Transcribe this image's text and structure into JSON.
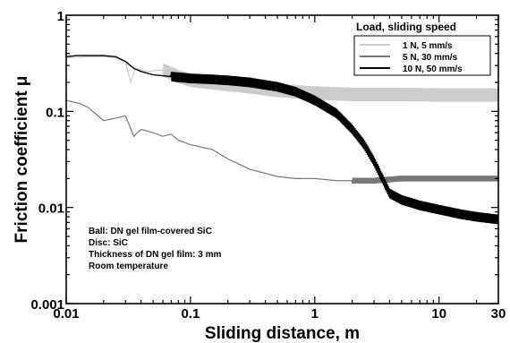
{
  "chart_data": {
    "type": "line",
    "xscale": "log",
    "yscale": "log",
    "xlim": [
      0.01,
      30
    ],
    "ylim": [
      0.001,
      1
    ],
    "xlabel": "Sliding distance, m",
    "ylabel": "Friction coefficient  μ",
    "xticks": [
      {
        "value": 0.01,
        "label": "0.01"
      },
      {
        "value": 0.1,
        "label": "0.1"
      },
      {
        "value": 1,
        "label": "1"
      },
      {
        "value": 10,
        "label": "10"
      },
      {
        "value": 30,
        "label": "30"
      }
    ],
    "yticks": [
      {
        "value": 0.001,
        "label": "0.001"
      },
      {
        "value": 0.01,
        "label": "0.01"
      },
      {
        "value": 0.1,
        "label": "0.1"
      },
      {
        "value": 1,
        "label": "1"
      }
    ],
    "legend": {
      "title": "Load, sliding speed",
      "position": "top-right"
    },
    "series": [
      {
        "name": "1 N, 5 mm/s",
        "color": "#cccccc",
        "line_width": 1.2,
        "points": [
          [
            0.01,
            0.36
          ],
          [
            0.015,
            0.37
          ],
          [
            0.02,
            0.37
          ],
          [
            0.025,
            0.36
          ],
          [
            0.03,
            0.33
          ],
          [
            0.033,
            0.2
          ],
          [
            0.036,
            0.28
          ],
          [
            0.045,
            0.26
          ],
          [
            0.06,
            0.27
          ],
          [
            0.08,
            0.23
          ],
          [
            0.1,
            0.21
          ],
          [
            0.2,
            0.19
          ],
          [
            0.3,
            0.18
          ],
          [
            0.5,
            0.165
          ],
          [
            0.7,
            0.16
          ],
          [
            1,
            0.155
          ],
          [
            2,
            0.15
          ],
          [
            5,
            0.15
          ],
          [
            10,
            0.148
          ],
          [
            20,
            0.148
          ],
          [
            30,
            0.148
          ]
        ],
        "oscillation": {
          "from_x": 0.06,
          "to_x": 30,
          "amplitude_decades": 0.07
        }
      },
      {
        "name": "5 N, 30 mm/s",
        "color": "#777777",
        "line_width": 1.2,
        "points": [
          [
            0.01,
            0.13
          ],
          [
            0.013,
            0.12
          ],
          [
            0.015,
            0.11
          ],
          [
            0.018,
            0.09
          ],
          [
            0.02,
            0.08
          ],
          [
            0.025,
            0.085
          ],
          [
            0.03,
            0.09
          ],
          [
            0.035,
            0.055
          ],
          [
            0.04,
            0.065
          ],
          [
            0.05,
            0.06
          ],
          [
            0.06,
            0.055
          ],
          [
            0.07,
            0.058
          ],
          [
            0.08,
            0.05
          ],
          [
            0.1,
            0.045
          ],
          [
            0.15,
            0.04
          ],
          [
            0.2,
            0.032
          ],
          [
            0.3,
            0.025
          ],
          [
            0.5,
            0.021
          ],
          [
            0.7,
            0.02
          ],
          [
            1,
            0.02
          ],
          [
            1.5,
            0.019
          ],
          [
            2,
            0.019
          ],
          [
            3,
            0.019
          ],
          [
            5,
            0.02
          ],
          [
            10,
            0.02
          ],
          [
            20,
            0.02
          ],
          [
            30,
            0.02
          ]
        ],
        "oscillation": {
          "from_x": 2,
          "to_x": 30,
          "amplitude_decades": 0.03
        }
      },
      {
        "name": "10 N, 50 mm/s",
        "color": "#000000",
        "line_width": 1.4,
        "points": [
          [
            0.01,
            0.37
          ],
          [
            0.012,
            0.38
          ],
          [
            0.015,
            0.38
          ],
          [
            0.02,
            0.38
          ],
          [
            0.025,
            0.37
          ],
          [
            0.03,
            0.33
          ],
          [
            0.035,
            0.28
          ],
          [
            0.04,
            0.26
          ],
          [
            0.05,
            0.24
          ],
          [
            0.07,
            0.23
          ],
          [
            0.1,
            0.22
          ],
          [
            0.15,
            0.215
          ],
          [
            0.2,
            0.21
          ],
          [
            0.3,
            0.2
          ],
          [
            0.5,
            0.18
          ],
          [
            0.7,
            0.16
          ],
          [
            1,
            0.13
          ],
          [
            1.5,
            0.095
          ],
          [
            2,
            0.065
          ],
          [
            2.5,
            0.045
          ],
          [
            3,
            0.03
          ],
          [
            3.5,
            0.02
          ],
          [
            4,
            0.014
          ],
          [
            5,
            0.012
          ],
          [
            7,
            0.0105
          ],
          [
            10,
            0.0095
          ],
          [
            15,
            0.0085
          ],
          [
            20,
            0.008
          ],
          [
            30,
            0.0075
          ]
        ],
        "oscillation": {
          "from_x": 0.07,
          "to_x": 30,
          "amplitude_decades": 0.05
        }
      }
    ],
    "annotation": [
      "Ball: DN gel film-covered SiC",
      "Disc: SiC",
      "Thickness of DN gel film: 3 mm",
      "Room temperature"
    ]
  }
}
